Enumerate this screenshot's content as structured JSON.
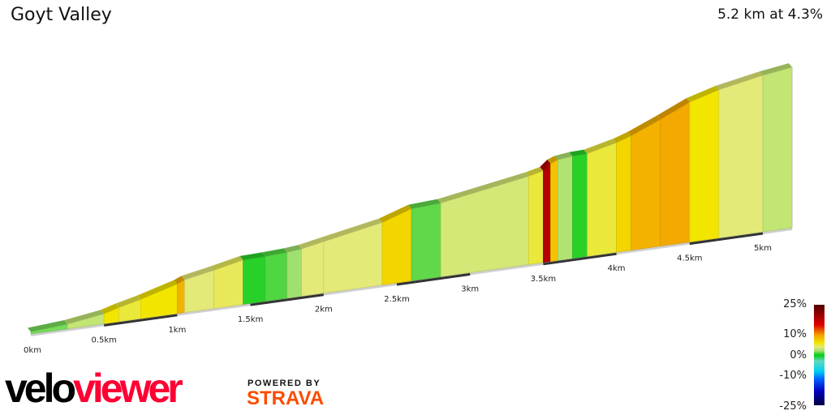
{
  "header": {
    "title": "Goyt Valley",
    "summary": "5.2 km at 4.3%"
  },
  "chart_data": {
    "type": "area",
    "subtype": "3d-elevation-profile-colored-by-gradient",
    "x_unit": "km",
    "x_ticks": [
      "0km",
      "0.5km",
      "1km",
      "1.5km",
      "2km",
      "2.5km",
      "3km",
      "3.5km",
      "4km",
      "4.5km",
      "5km"
    ],
    "x_tick_values": [
      0,
      0.5,
      1,
      1.5,
      2,
      2.5,
      3,
      3.5,
      4,
      4.5,
      5
    ],
    "total_distance_km": 5.2,
    "average_gradient_pct": 4.3,
    "segments": [
      {
        "from": 0,
        "to": 0.25,
        "gradient": 1.5
      },
      {
        "from": 0.25,
        "to": 0.5,
        "gradient": 3
      },
      {
        "from": 0.5,
        "to": 0.6,
        "gradient": 6
      },
      {
        "from": 0.6,
        "to": 0.75,
        "gradient": 5
      },
      {
        "from": 0.75,
        "to": 1.0,
        "gradient": 6
      },
      {
        "from": 1.0,
        "to": 1.05,
        "gradient": 9
      },
      {
        "from": 1.05,
        "to": 1.25,
        "gradient": 4
      },
      {
        "from": 1.25,
        "to": 1.45,
        "gradient": 4.5
      },
      {
        "from": 1.45,
        "to": 1.6,
        "gradient": 0.5
      },
      {
        "from": 1.6,
        "to": 1.75,
        "gradient": 1
      },
      {
        "from": 1.75,
        "to": 1.85,
        "gradient": 2
      },
      {
        "from": 1.85,
        "to": 2.0,
        "gradient": 4
      },
      {
        "from": 2.0,
        "to": 2.4,
        "gradient": 4
      },
      {
        "from": 2.4,
        "to": 2.6,
        "gradient": 7
      },
      {
        "from": 2.6,
        "to": 2.8,
        "gradient": 1.2
      },
      {
        "from": 2.8,
        "to": 3.4,
        "gradient": 3.5
      },
      {
        "from": 3.4,
        "to": 3.5,
        "gradient": 5
      },
      {
        "from": 3.5,
        "to": 3.55,
        "gradient": 18
      },
      {
        "from": 3.55,
        "to": 3.6,
        "gradient": 8
      },
      {
        "from": 3.6,
        "to": 3.7,
        "gradient": 2.5
      },
      {
        "from": 3.7,
        "to": 3.8,
        "gradient": 0.5
      },
      {
        "from": 3.8,
        "to": 4.0,
        "gradient": 5
      },
      {
        "from": 4.0,
        "to": 4.1,
        "gradient": 7
      },
      {
        "from": 4.1,
        "to": 4.3,
        "gradient": 9
      },
      {
        "from": 4.3,
        "to": 4.5,
        "gradient": 9.5
      },
      {
        "from": 4.5,
        "to": 4.7,
        "gradient": 6
      },
      {
        "from": 4.7,
        "to": 5.0,
        "gradient": 4
      },
      {
        "from": 5.0,
        "to": 5.2,
        "gradient": 3
      }
    ]
  },
  "legend": {
    "labels": [
      "25%",
      "10%",
      "0%",
      "-10%",
      "-25%"
    ],
    "color_scale": [
      {
        "pct": -25,
        "color": "#000040"
      },
      {
        "pct": -18,
        "color": "#0000c0"
      },
      {
        "pct": -12,
        "color": "#0060ff"
      },
      {
        "pct": -8,
        "color": "#00d0f0"
      },
      {
        "pct": -3,
        "color": "#60d8c0"
      },
      {
        "pct": 0,
        "color": "#00cc10"
      },
      {
        "pct": 2,
        "color": "#a0e070"
      },
      {
        "pct": 4,
        "color": "#e4ea78"
      },
      {
        "pct": 6,
        "color": "#f2e600"
      },
      {
        "pct": 10,
        "color": "#f4a000"
      },
      {
        "pct": 15,
        "color": "#e00000"
      },
      {
        "pct": 25,
        "color": "#500000"
      }
    ]
  },
  "branding": {
    "velo": "velo",
    "viewer": "viewer",
    "powered_by": "POWERED BY",
    "strava": "STRAVA"
  }
}
